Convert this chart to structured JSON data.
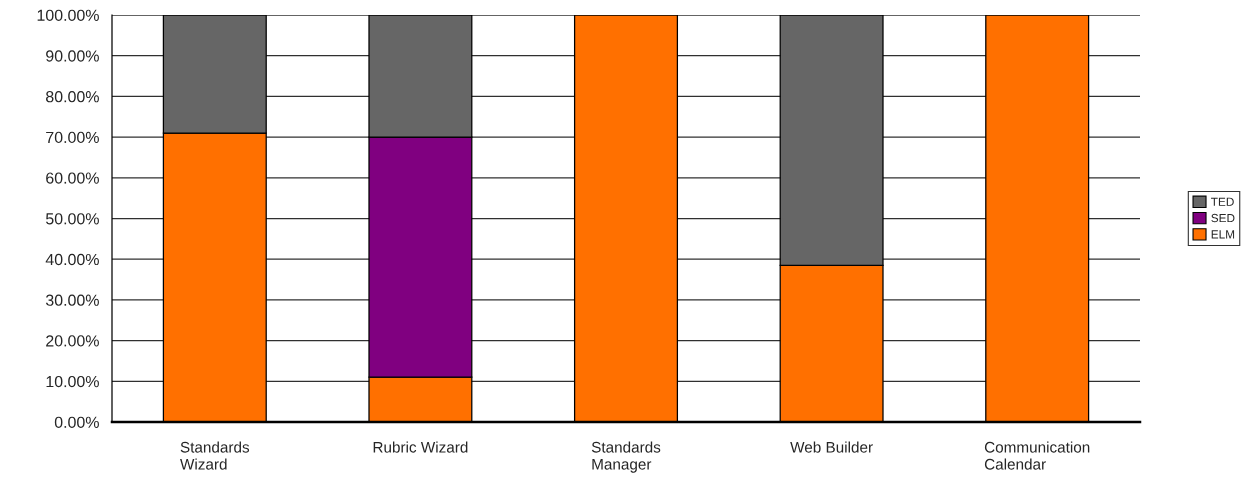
{
  "chart_data": {
    "type": "bar",
    "stacked": true,
    "categories": [
      "Standards\nWizard",
      "Rubric Wizard",
      "Standards\nManager",
      "Web Builder",
      "Communication\nCalendar"
    ],
    "series": [
      {
        "name": "ELM",
        "color": "#ff7000",
        "values": [
          71,
          11,
          100,
          38.5,
          100
        ]
      },
      {
        "name": "SED",
        "color": "#800080",
        "values": [
          null,
          59,
          null,
          null,
          null
        ]
      },
      {
        "name": "TED",
        "color": "#666666",
        "values": [
          29,
          30,
          null,
          61.5,
          null
        ]
      }
    ],
    "ylim": [
      0,
      100
    ],
    "yticks": [
      {
        "value": 0,
        "label": "0.00%"
      },
      {
        "value": 10,
        "label": "10.00%"
      },
      {
        "value": 20,
        "label": "20.00%"
      },
      {
        "value": 30,
        "label": "30.00%"
      },
      {
        "value": 40,
        "label": "40.00%"
      },
      {
        "value": 50,
        "label": "50.00%"
      },
      {
        "value": 60,
        "label": "60.00%"
      },
      {
        "value": 70,
        "label": "70.00%"
      },
      {
        "value": 80,
        "label": "80.00%"
      },
      {
        "value": 90,
        "label": "90.00%"
      },
      {
        "value": 100,
        "label": "100.00%"
      }
    ],
    "grid": "y",
    "legend": "right"
  }
}
